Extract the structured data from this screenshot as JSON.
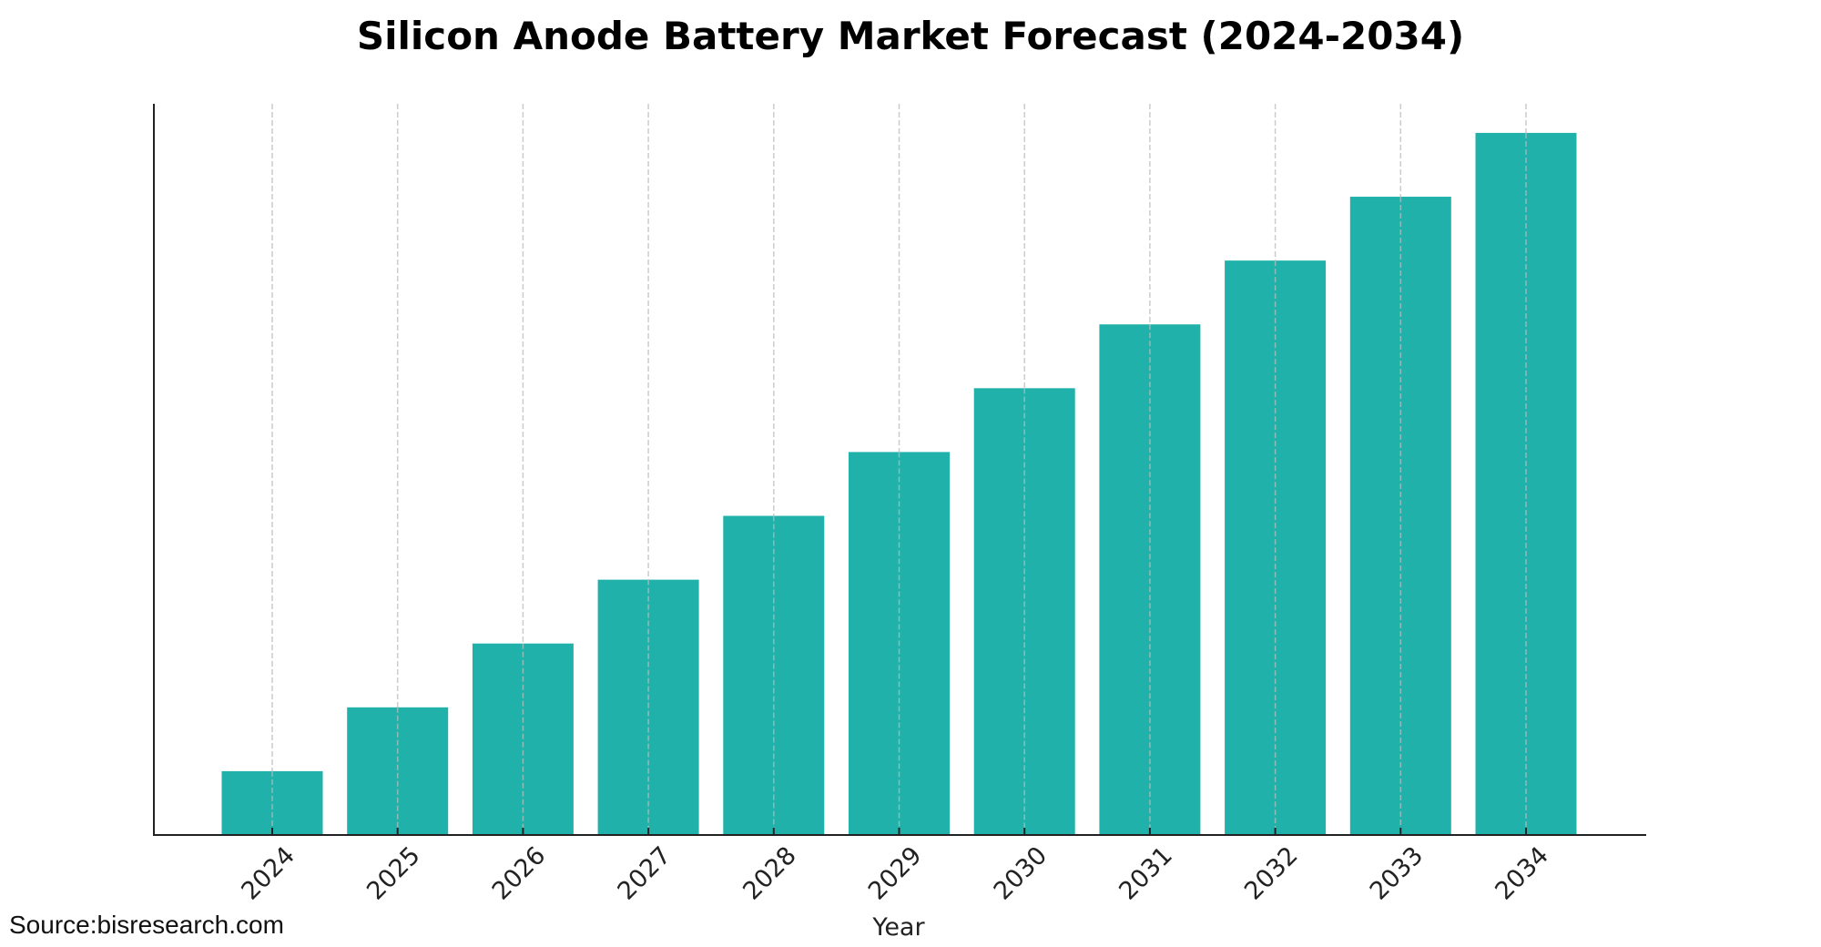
{
  "chart_data": {
    "type": "bar",
    "title": "Silicon Anode Battery Market Forecast (2024-2034)",
    "xlabel": "Year",
    "ylabel": "",
    "categories": [
      "2024",
      "2025",
      "2026",
      "2027",
      "2028",
      "2029",
      "2030",
      "2031",
      "2032",
      "2033",
      "2034"
    ],
    "values": [
      1.0,
      2.0,
      3.0,
      4.0,
      5.0,
      6.0,
      7.0,
      8.0,
      9.0,
      10.0,
      11.0
    ],
    "value_units": "relative (no y-axis scale shown)",
    "ylim": [
      0,
      11.45
    ],
    "grid": {
      "x": true,
      "y": false,
      "style": "dashed"
    },
    "bar_color": "#20B2AA",
    "tick_label_rotation_deg": 45
  },
  "source": "Source:bisresearch.com"
}
